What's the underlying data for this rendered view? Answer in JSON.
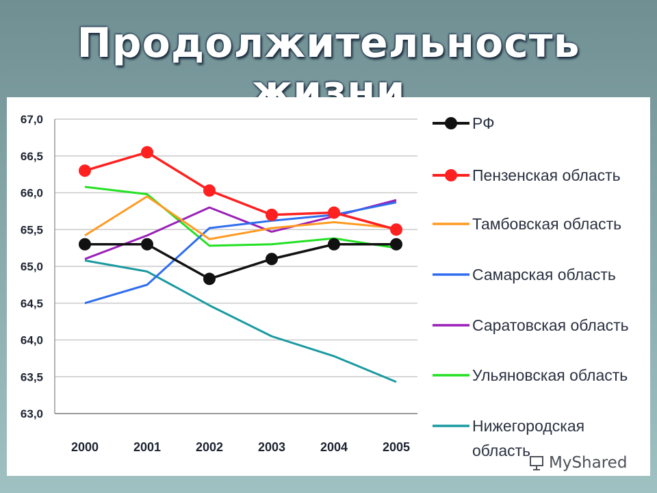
{
  "slide": {
    "title": "Продолжительность жизни"
  },
  "chart_data": {
    "type": "line",
    "title": "",
    "xlabel": "",
    "ylabel": "",
    "categories": [
      "2000",
      "2001",
      "2002",
      "2003",
      "2004",
      "2005"
    ],
    "ylim": [
      63.0,
      67.0
    ],
    "ytick_values": [
      63.0,
      63.5,
      64.0,
      64.5,
      65.0,
      65.5,
      66.0,
      66.5,
      67.0
    ],
    "ytick_labels": [
      "63,0",
      "63,5",
      "64,0",
      "64,5",
      "65,0",
      "65,5",
      "66,0",
      "66,5",
      "67,0"
    ],
    "grid": true,
    "legend_position": "right",
    "series": [
      {
        "name": "РФ",
        "color": "#111111",
        "markers": true,
        "values": [
          65.3,
          65.3,
          64.83,
          65.1,
          65.3,
          65.3
        ]
      },
      {
        "name": "Пензенская область",
        "color": "#ff2020",
        "markers": true,
        "values": [
          66.3,
          66.55,
          66.03,
          65.7,
          65.73,
          65.5
        ]
      },
      {
        "name": "Тамбовская область",
        "color": "#ff9a22",
        "markers": false,
        "values": [
          65.42,
          65.95,
          65.37,
          65.52,
          65.6,
          65.52
        ]
      },
      {
        "name": "Самарская область",
        "color": "#2f6dee",
        "markers": false,
        "values": [
          64.5,
          64.75,
          65.52,
          65.62,
          65.7,
          65.87
        ]
      },
      {
        "name": "Саратовская область",
        "color": "#9a1fb8",
        "markers": false,
        "values": [
          65.1,
          65.42,
          65.8,
          65.47,
          65.68,
          65.9
        ]
      },
      {
        "name": "Ульяновская область",
        "color": "#22e022",
        "markers": false,
        "values": [
          66.08,
          65.98,
          65.28,
          65.3,
          65.38,
          65.25
        ]
      },
      {
        "name": "Нижегородская область",
        "color": "#1a9aa0",
        "markers": false,
        "values": [
          65.08,
          64.93,
          64.47,
          64.05,
          63.78,
          63.43
        ]
      }
    ]
  },
  "legend_lines": {
    "nizhegorod_line1": "Нижегородская",
    "nizhegorod_line2": "область"
  },
  "watermark": {
    "text": "MyShared",
    "icon": "presentation-board-icon"
  }
}
